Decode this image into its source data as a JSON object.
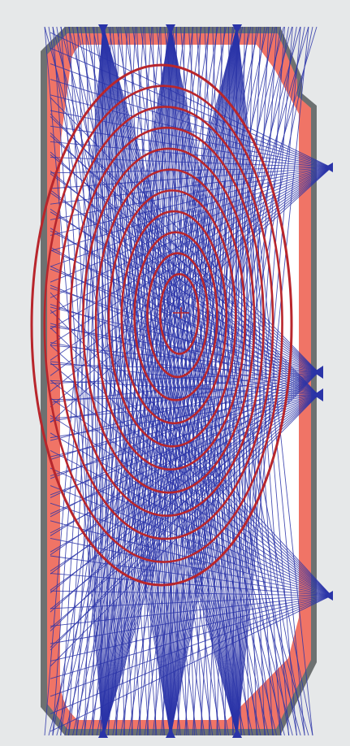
{
  "colors": {
    "background": "#e6e8e9",
    "vessel_wall": "#6d7171",
    "first_wall": "#f07466",
    "plasma_region": "#ffffff",
    "flux_surfaces": "#b8262c",
    "sightlines": "#2a34a8",
    "detector": "#2a34a8"
  },
  "diagram": {
    "flux_surface_count": 11,
    "detector_fans": [
      {
        "name": "top-fan-1",
        "lines": 34
      },
      {
        "name": "top-fan-2",
        "lines": 34
      },
      {
        "name": "top-fan-3",
        "lines": 34
      },
      {
        "name": "right-fan-upper",
        "lines": 26
      },
      {
        "name": "right-fan-mid-1",
        "lines": 30
      },
      {
        "name": "right-fan-mid-2",
        "lines": 30
      },
      {
        "name": "right-fan-lower",
        "lines": 26
      },
      {
        "name": "bottom-fan-1",
        "lines": 34
      },
      {
        "name": "bottom-fan-2",
        "lines": 34
      },
      {
        "name": "bottom-fan-3",
        "lines": 34
      }
    ]
  }
}
